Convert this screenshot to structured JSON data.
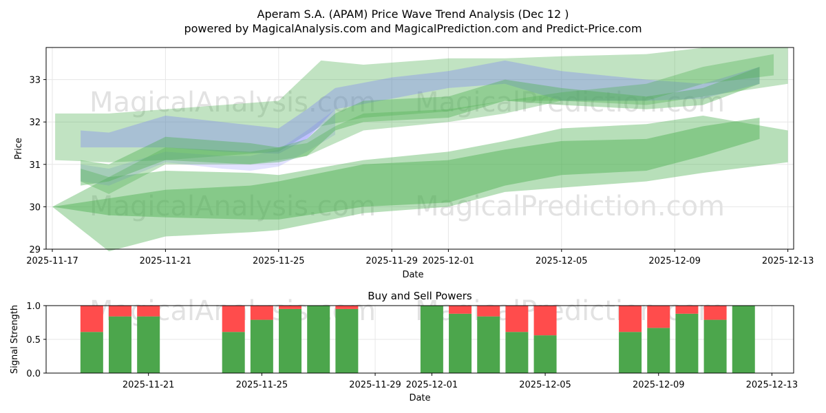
{
  "title": "Aperam S.A. (APAM) Price Wave Trend Analysis (Dec 12 )",
  "subtitle": "powered by MagicalAnalysis.com and MagicalPrediction.com and Predict-Price.com",
  "watermarks": [
    "MagicalAnalysis.com",
    "MagicalPrediction.com"
  ],
  "colors": {
    "green": "#4caf50",
    "blue": "#6f6fff",
    "buy": "#4ca64c",
    "sell": "#ff4c4c"
  },
  "chart_data": [
    {
      "type": "area",
      "title": "",
      "xlabel": "Date",
      "ylabel": "Price",
      "x_origin": "2025-11-17",
      "xlim_days": [
        -0.2,
        26.2
      ],
      "ylim": [
        28.98,
        33.75
      ],
      "x_ticks": [
        {
          "day": 0,
          "label": "2025-11-17"
        },
        {
          "day": 4,
          "label": "2025-11-21"
        },
        {
          "day": 8,
          "label": "2025-11-25"
        },
        {
          "day": 12,
          "label": "2025-11-29"
        },
        {
          "day": 14,
          "label": "2025-12-01"
        },
        {
          "day": 18,
          "label": "2025-12-05"
        },
        {
          "day": 22,
          "label": "2025-12-09"
        },
        {
          "day": 26,
          "label": "2025-12-13"
        }
      ],
      "y_ticks": [
        29,
        30,
        31,
        32,
        33
      ],
      "grid": true,
      "bands": [
        {
          "name": "wide-lower",
          "color": "green",
          "opacity": 0.4,
          "x": [
            0,
            2,
            4,
            7,
            8,
            11,
            14,
            16,
            18,
            21,
            23,
            26
          ],
          "upper": [
            30.0,
            30.7,
            30.85,
            30.8,
            30.75,
            31.1,
            31.3,
            31.55,
            31.85,
            31.95,
            32.15,
            31.8
          ],
          "lower": [
            30.0,
            28.95,
            29.3,
            29.4,
            29.45,
            29.85,
            30.0,
            30.35,
            30.45,
            30.6,
            30.8,
            31.05
          ]
        },
        {
          "name": "core-lower",
          "color": "green",
          "opacity": 0.45,
          "x": [
            0,
            2,
            4,
            7,
            8,
            11,
            14,
            16,
            18,
            21,
            23,
            25
          ],
          "upper": [
            30.0,
            30.2,
            30.4,
            30.5,
            30.6,
            31.0,
            31.1,
            31.35,
            31.55,
            31.6,
            31.9,
            32.1
          ],
          "lower": [
            30.0,
            29.8,
            29.75,
            29.7,
            29.7,
            30.0,
            30.1,
            30.5,
            30.75,
            30.85,
            31.2,
            31.6
          ]
        },
        {
          "name": "wide-upper",
          "color": "green",
          "opacity": 0.35,
          "x": [
            0.1,
            2,
            4,
            8,
            9.5,
            11,
            14,
            16,
            18,
            21,
            23,
            26
          ],
          "upper": [
            32.2,
            32.2,
            32.3,
            32.5,
            33.45,
            33.35,
            33.5,
            33.5,
            33.55,
            33.6,
            33.75,
            33.75
          ],
          "lower": [
            31.1,
            31.05,
            31.1,
            31.3,
            31.9,
            32.1,
            32.25,
            32.5,
            32.5,
            32.4,
            32.6,
            32.9
          ]
        },
        {
          "name": "blue-upper",
          "color": "blue",
          "opacity": 0.3,
          "x": [
            1,
            2,
            4,
            6,
            8,
            9,
            10,
            12,
            14,
            16,
            18,
            21,
            23,
            25
          ],
          "upper": [
            31.8,
            31.75,
            32.15,
            32.0,
            31.85,
            32.3,
            32.8,
            33.05,
            33.2,
            33.45,
            33.2,
            33.0,
            32.9,
            33.3
          ],
          "lower": [
            31.4,
            31.4,
            31.4,
            31.3,
            31.25,
            31.6,
            32.3,
            32.55,
            32.8,
            32.9,
            32.5,
            32.5,
            32.55,
            32.9
          ]
        },
        {
          "name": "blue-lower",
          "color": "blue",
          "opacity": 0.2,
          "x": [
            1,
            2,
            4,
            6,
            7,
            8,
            9,
            10
          ],
          "upper": [
            31.0,
            30.9,
            31.3,
            31.2,
            31.2,
            31.35,
            31.8,
            32.3
          ],
          "lower": [
            30.6,
            30.5,
            31.05,
            30.9,
            30.85,
            30.95,
            31.3,
            31.7
          ]
        },
        {
          "name": "green-mid-1",
          "color": "green",
          "opacity": 0.4,
          "x": [
            1,
            2,
            4,
            7,
            8,
            9,
            10,
            11,
            14,
            16,
            18,
            21,
            23,
            25
          ],
          "upper": [
            31.1,
            31.0,
            31.65,
            31.5,
            31.4,
            31.6,
            32.2,
            32.5,
            32.6,
            33.0,
            32.8,
            32.6,
            32.8,
            33.3
          ],
          "lower": [
            30.5,
            30.6,
            31.1,
            31.0,
            31.05,
            31.2,
            31.8,
            32.0,
            32.1,
            32.5,
            32.4,
            32.3,
            32.4,
            32.9
          ]
        },
        {
          "name": "green-mid-2",
          "color": "green",
          "opacity": 0.35,
          "x": [
            1,
            2,
            4,
            7,
            9,
            10,
            11,
            14,
            16,
            18,
            21,
            23,
            25.5
          ],
          "upper": [
            30.9,
            30.7,
            31.4,
            31.3,
            31.5,
            31.9,
            32.2,
            32.3,
            32.5,
            32.7,
            32.9,
            33.3,
            33.6
          ],
          "lower": [
            30.6,
            30.3,
            31.0,
            31.0,
            31.2,
            31.5,
            31.8,
            32.0,
            32.2,
            32.5,
            32.5,
            32.9,
            33.1
          ]
        }
      ]
    },
    {
      "type": "bar",
      "title": "Buy and Sell Powers",
      "xlabel": "Date",
      "ylabel": "Signal Strength",
      "ylim": [
        0,
        1.0
      ],
      "y_ticks": [
        "0.0",
        "0.5",
        "1.0"
      ],
      "x_ticks": [
        {
          "day": 4,
          "label": "2025-11-21"
        },
        {
          "day": 8,
          "label": "2025-11-25"
        },
        {
          "day": 12,
          "label": "2025-11-29"
        },
        {
          "day": 14,
          "label": "2025-12-01"
        },
        {
          "day": 18,
          "label": "2025-12-05"
        },
        {
          "day": 22,
          "label": "2025-12-09"
        },
        {
          "day": 26,
          "label": "2025-12-13"
        }
      ],
      "days": [
        2,
        3,
        4,
        7,
        8,
        9,
        10,
        11,
        14,
        15,
        16,
        17,
        18,
        21,
        22,
        23,
        24,
        25
      ],
      "buy": [
        0.61,
        0.84,
        0.84,
        0.61,
        0.79,
        0.95,
        1.0,
        0.95,
        1.0,
        0.88,
        0.84,
        0.61,
        0.56,
        0.61,
        0.67,
        0.88,
        0.79,
        1.0
      ],
      "sell": [
        0.39,
        0.16,
        0.16,
        0.39,
        0.21,
        0.05,
        0.0,
        0.05,
        0.0,
        0.12,
        0.16,
        0.39,
        0.44,
        0.39,
        0.33,
        0.12,
        0.21,
        0.0
      ]
    }
  ]
}
